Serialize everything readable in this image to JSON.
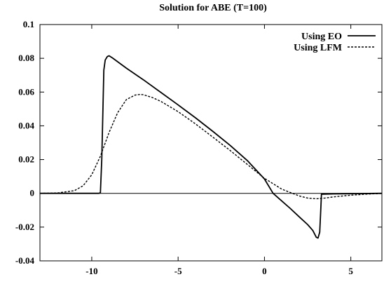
{
  "chart_data": {
    "type": "line",
    "title": "Solution for ABE (T=100)",
    "xlabel": "",
    "ylabel": "",
    "xlim": [
      -13,
      6.8
    ],
    "ylim": [
      -0.04,
      0.1
    ],
    "x_ticks": [
      -10,
      -5,
      0,
      5
    ],
    "x_tick_labels": [
      "-10",
      "-5",
      "0",
      "5"
    ],
    "y_ticks": [
      0.1,
      0.08,
      0.06,
      0.04,
      0.02,
      0,
      -0.02,
      -0.04
    ],
    "y_tick_labels": [
      "0.1",
      "0.08",
      "0.06",
      "0.04",
      "0.02",
      "0",
      "-0.02",
      "-0.04"
    ],
    "grid": false,
    "legend_position": "top-right",
    "zero_line": true,
    "series": [
      {
        "name": "Using EO",
        "style": "solid",
        "color": "#000000",
        "x": [
          -13.0,
          -11.0,
          -10.0,
          -9.6,
          -9.5,
          -9.42,
          -9.3,
          -9.22,
          -9.1,
          -9.0,
          -8.8,
          -8.0,
          -7.0,
          -6.0,
          -5.0,
          -4.0,
          -3.0,
          -2.0,
          -1.0,
          0.0,
          0.5,
          1.0,
          1.5,
          2.0,
          2.5,
          2.8,
          3.0,
          3.1,
          3.2,
          3.25,
          3.3,
          4.0,
          5.0,
          6.0,
          6.8
        ],
        "y": [
          0.0,
          0.0,
          0.0,
          0.0,
          0.0003,
          0.02,
          0.073,
          0.079,
          0.081,
          0.0815,
          0.0802,
          0.0742,
          0.0672,
          0.0598,
          0.0524,
          0.0448,
          0.0368,
          0.0285,
          0.0195,
          0.0085,
          0.0,
          -0.0045,
          -0.009,
          -0.0138,
          -0.0185,
          -0.022,
          -0.026,
          -0.0265,
          -0.023,
          -0.012,
          -0.0005,
          -0.0003,
          -0.0002,
          -0.0001,
          0.0
        ]
      },
      {
        "name": "Using LFM",
        "style": "dashed",
        "color": "#000000",
        "x": [
          -13.0,
          -12.0,
          -11.0,
          -10.5,
          -10.0,
          -9.5,
          -9.0,
          -8.5,
          -8.0,
          -7.5,
          -7.2,
          -7.0,
          -6.5,
          -6.0,
          -5.0,
          -4.0,
          -3.0,
          -2.0,
          -1.0,
          0.0,
          1.0,
          2.0,
          2.5,
          3.0,
          3.5,
          4.0,
          5.0,
          6.0,
          6.8
        ],
        "y": [
          0.0,
          0.0002,
          0.0016,
          0.0045,
          0.011,
          0.022,
          0.036,
          0.0478,
          0.0555,
          0.0582,
          0.0586,
          0.0584,
          0.0568,
          0.0545,
          0.0484,
          0.0412,
          0.0334,
          0.0255,
          0.0172,
          0.0089,
          0.0025,
          -0.0015,
          -0.0028,
          -0.0032,
          -0.0028,
          -0.0021,
          -0.0011,
          -0.0004,
          -0.0001
        ]
      }
    ]
  }
}
